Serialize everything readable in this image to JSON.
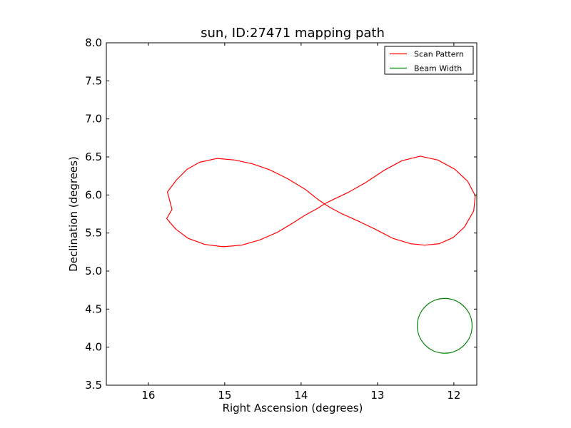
{
  "chart_data": {
    "type": "line",
    "title": "sun, ID:27471 mapping path",
    "xlabel": "Right Ascension (degrees)",
    "ylabel": "Declination (degrees)",
    "xlim": [
      16.55,
      11.7
    ],
    "ylim": [
      3.5,
      8.0
    ],
    "x_inverted": true,
    "xticks": [
      16,
      15,
      14,
      13,
      12
    ],
    "yticks": [
      3.5,
      4.0,
      4.5,
      5.0,
      5.5,
      6.0,
      6.5,
      7.0,
      7.5,
      8.0
    ],
    "xtick_labels": [
      "16",
      "15",
      "14",
      "13",
      "12"
    ],
    "ytick_labels": [
      "3.5",
      "4.0",
      "4.5",
      "5.0",
      "5.5",
      "6.0",
      "6.5",
      "7.0",
      "7.5",
      "8.0"
    ],
    "grid": false,
    "legend_position": "top-right",
    "series": [
      {
        "name": "Scan Pattern",
        "color": "#ff0000",
        "x": [
          15.69,
          15.75,
          15.63,
          15.49,
          15.33,
          15.1,
          14.87,
          14.64,
          14.41,
          14.17,
          13.94,
          13.79,
          13.69,
          13.61,
          13.48,
          13.26,
          13.03,
          12.8,
          12.57,
          12.38,
          12.19,
          12.01,
          11.86,
          11.74,
          11.72,
          11.82,
          11.99,
          12.21,
          12.44,
          12.68,
          12.92,
          13.16,
          13.39,
          13.58,
          13.7,
          13.79,
          13.94,
          14.11,
          14.31,
          14.54,
          14.78,
          15.02,
          15.26,
          15.48,
          15.64,
          15.76,
          15.69
        ],
        "y": [
          5.81,
          6.04,
          6.2,
          6.34,
          6.43,
          6.48,
          6.46,
          6.41,
          6.33,
          6.21,
          6.07,
          5.95,
          5.88,
          5.83,
          5.76,
          5.66,
          5.55,
          5.43,
          5.36,
          5.34,
          5.36,
          5.44,
          5.58,
          5.79,
          5.99,
          6.18,
          6.34,
          6.46,
          6.51,
          6.45,
          6.32,
          6.16,
          6.03,
          5.94,
          5.88,
          5.82,
          5.74,
          5.63,
          5.51,
          5.41,
          5.34,
          5.32,
          5.35,
          5.43,
          5.55,
          5.69,
          5.81
        ]
      },
      {
        "name": "Beam Width",
        "color": "#008000",
        "center_x": 12.12,
        "center_y": 4.28,
        "radius": 0.36
      }
    ]
  }
}
